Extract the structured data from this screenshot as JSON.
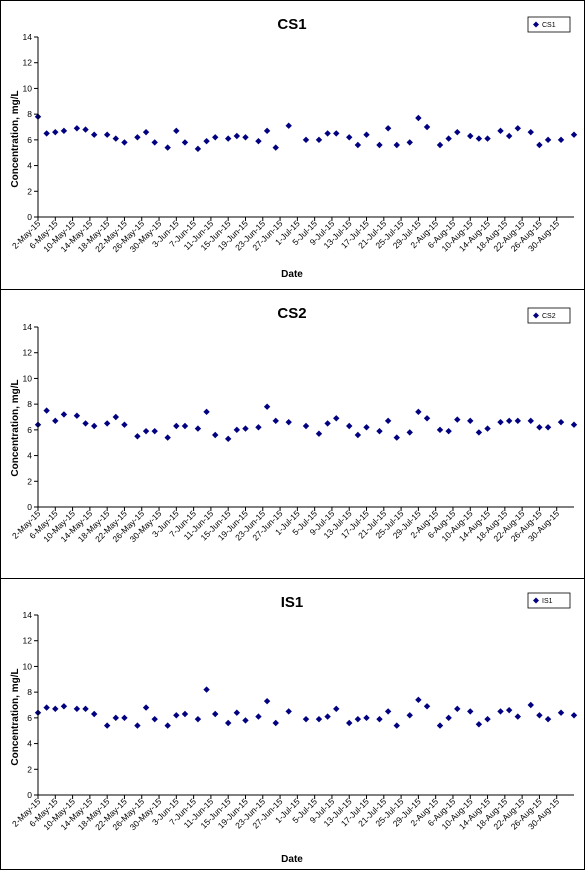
{
  "chart_data": [
    {
      "type": "scatter",
      "title": "CS1",
      "xlabel": "Date",
      "ylabel": "Concentration, mg/L",
      "ylim": [
        0,
        14
      ],
      "yticks": [
        "0",
        "2",
        "4",
        "6",
        "8",
        "10",
        "12",
        "14"
      ],
      "grid": false,
      "legend": "top-right",
      "x_tick_labels": [
        "2-May-15",
        "6-May-15",
        "10-May-15",
        "14-May-15",
        "18-May-15",
        "22-May-15",
        "26-May-15",
        "30-May-15",
        "3-Jun-15",
        "7-Jun-15",
        "11-Jun-15",
        "15-Jun-15",
        "19-Jun-15",
        "23-Jun-15",
        "27-Jun-15",
        "1-Jul-15",
        "5-Jul-15",
        "9-Jul-15",
        "13-Jul-15",
        "17-Jul-15",
        "21-Jul-15",
        "25-Jul-15",
        "29-Jul-15",
        "2-Aug-15",
        "6-Aug-15",
        "10-Aug-15",
        "14-Aug-15",
        "18-Aug-15",
        "22-Aug-15",
        "26-Aug-15",
        "30-Aug-15"
      ],
      "series": [
        {
          "name": "CS1",
          "color": "#000080",
          "points": [
            {
              "x": "2-May-15",
              "y": 7.8
            },
            {
              "x": "4-May-15",
              "y": 6.5
            },
            {
              "x": "6-May-15",
              "y": 6.6
            },
            {
              "x": "8-May-15",
              "y": 6.7
            },
            {
              "x": "11-May-15",
              "y": 6.9
            },
            {
              "x": "13-May-15",
              "y": 6.8
            },
            {
              "x": "15-May-15",
              "y": 6.4
            },
            {
              "x": "18-May-15",
              "y": 6.4
            },
            {
              "x": "20-May-15",
              "y": 6.1
            },
            {
              "x": "22-May-15",
              "y": 5.8
            },
            {
              "x": "25-May-15",
              "y": 6.2
            },
            {
              "x": "27-May-15",
              "y": 6.6
            },
            {
              "x": "29-May-15",
              "y": 5.8
            },
            {
              "x": "1-Jun-15",
              "y": 5.4
            },
            {
              "x": "3-Jun-15",
              "y": 6.7
            },
            {
              "x": "5-Jun-15",
              "y": 5.8
            },
            {
              "x": "8-Jun-15",
              "y": 5.3
            },
            {
              "x": "10-Jun-15",
              "y": 5.9
            },
            {
              "x": "12-Jun-15",
              "y": 6.2
            },
            {
              "x": "15-Jun-15",
              "y": 6.1
            },
            {
              "x": "17-Jun-15",
              "y": 6.3
            },
            {
              "x": "19-Jun-15",
              "y": 6.2
            },
            {
              "x": "22-Jun-15",
              "y": 5.9
            },
            {
              "x": "24-Jun-15",
              "y": 6.7
            },
            {
              "x": "26-Jun-15",
              "y": 5.4
            },
            {
              "x": "29-Jun-15",
              "y": 7.1
            },
            {
              "x": "3-Jul-15",
              "y": 6.0
            },
            {
              "x": "6-Jul-15",
              "y": 6.0
            },
            {
              "x": "8-Jul-15",
              "y": 6.5
            },
            {
              "x": "10-Jul-15",
              "y": 6.5
            },
            {
              "x": "13-Jul-15",
              "y": 6.2
            },
            {
              "x": "15-Jul-15",
              "y": 5.6
            },
            {
              "x": "17-Jul-15",
              "y": 6.4
            },
            {
              "x": "20-Jul-15",
              "y": 5.6
            },
            {
              "x": "22-Jul-15",
              "y": 6.9
            },
            {
              "x": "24-Jul-15",
              "y": 5.6
            },
            {
              "x": "27-Jul-15",
              "y": 5.8
            },
            {
              "x": "29-Jul-15",
              "y": 7.7
            },
            {
              "x": "31-Jul-15",
              "y": 7.0
            },
            {
              "x": "3-Aug-15",
              "y": 5.6
            },
            {
              "x": "5-Aug-15",
              "y": 6.1
            },
            {
              "x": "7-Aug-15",
              "y": 6.6
            },
            {
              "x": "10-Aug-15",
              "y": 6.3
            },
            {
              "x": "12-Aug-15",
              "y": 6.1
            },
            {
              "x": "14-Aug-15",
              "y": 6.1
            },
            {
              "x": "17-Aug-15",
              "y": 6.7
            },
            {
              "x": "19-Aug-15",
              "y": 6.3
            },
            {
              "x": "21-Aug-15",
              "y": 6.9
            },
            {
              "x": "24-Aug-15",
              "y": 6.6
            },
            {
              "x": "26-Aug-15",
              "y": 5.6
            },
            {
              "x": "28-Aug-15",
              "y": 6.0
            },
            {
              "x": "31-Aug-15",
              "y": 6.0
            },
            {
              "x": "3-Sep-15",
              "y": 6.4
            }
          ]
        }
      ]
    },
    {
      "type": "scatter",
      "title": "CS2",
      "xlabel": "Date",
      "ylabel": "Concentration, mg/L",
      "ylim": [
        0,
        14
      ],
      "yticks": [
        "0",
        "2",
        "4",
        "6",
        "8",
        "10",
        "12",
        "14"
      ],
      "grid": false,
      "legend": "top-right",
      "x_tick_labels": [
        "2-May-15",
        "6-May-15",
        "10-May-15",
        "14-May-15",
        "18-May-15",
        "22-May-15",
        "26-May-15",
        "30-May-15",
        "3-Jun-15",
        "7-Jun-15",
        "11-Jun-15",
        "15-Jun-15",
        "19-Jun-15",
        "23-Jun-15",
        "27-Jun-15",
        "1-Jul-15",
        "5-Jul-15",
        "9-Jul-15",
        "13-Jul-15",
        "17-Jul-15",
        "21-Jul-15",
        "25-Jul-15",
        "29-Jul-15",
        "2-Aug-15",
        "6-Aug-15",
        "10-Aug-15",
        "14-Aug-15",
        "18-Aug-15",
        "22-Aug-15",
        "26-Aug-15",
        "30-Aug-15"
      ],
      "series": [
        {
          "name": "CS2",
          "color": "#000080",
          "points": [
            {
              "x": "2-May-15",
              "y": 6.4
            },
            {
              "x": "4-May-15",
              "y": 7.5
            },
            {
              "x": "6-May-15",
              "y": 6.7
            },
            {
              "x": "8-May-15",
              "y": 7.2
            },
            {
              "x": "11-May-15",
              "y": 7.1
            },
            {
              "x": "13-May-15",
              "y": 6.5
            },
            {
              "x": "15-May-15",
              "y": 6.3
            },
            {
              "x": "18-May-15",
              "y": 6.5
            },
            {
              "x": "20-May-15",
              "y": 7.0
            },
            {
              "x": "22-May-15",
              "y": 6.4
            },
            {
              "x": "25-May-15",
              "y": 5.5
            },
            {
              "x": "27-May-15",
              "y": 5.9
            },
            {
              "x": "29-May-15",
              "y": 5.9
            },
            {
              "x": "1-Jun-15",
              "y": 5.4
            },
            {
              "x": "3-Jun-15",
              "y": 6.3
            },
            {
              "x": "5-Jun-15",
              "y": 6.3
            },
            {
              "x": "8-Jun-15",
              "y": 6.1
            },
            {
              "x": "10-Jun-15",
              "y": 7.4
            },
            {
              "x": "12-Jun-15",
              "y": 5.6
            },
            {
              "x": "15-Jun-15",
              "y": 5.3
            },
            {
              "x": "17-Jun-15",
              "y": 6.0
            },
            {
              "x": "19-Jun-15",
              "y": 6.1
            },
            {
              "x": "22-Jun-15",
              "y": 6.2
            },
            {
              "x": "24-Jun-15",
              "y": 7.8
            },
            {
              "x": "26-Jun-15",
              "y": 6.7
            },
            {
              "x": "29-Jun-15",
              "y": 6.6
            },
            {
              "x": "3-Jul-15",
              "y": 6.3
            },
            {
              "x": "6-Jul-15",
              "y": 5.7
            },
            {
              "x": "8-Jul-15",
              "y": 6.5
            },
            {
              "x": "10-Jul-15",
              "y": 6.9
            },
            {
              "x": "13-Jul-15",
              "y": 6.3
            },
            {
              "x": "15-Jul-15",
              "y": 5.6
            },
            {
              "x": "17-Jul-15",
              "y": 6.2
            },
            {
              "x": "20-Jul-15",
              "y": 5.9
            },
            {
              "x": "22-Jul-15",
              "y": 6.7
            },
            {
              "x": "24-Jul-15",
              "y": 5.4
            },
            {
              "x": "27-Jul-15",
              "y": 5.8
            },
            {
              "x": "29-Jul-15",
              "y": 7.4
            },
            {
              "x": "31-Jul-15",
              "y": 6.9
            },
            {
              "x": "3-Aug-15",
              "y": 6.0
            },
            {
              "x": "5-Aug-15",
              "y": 5.9
            },
            {
              "x": "7-Aug-15",
              "y": 6.8
            },
            {
              "x": "10-Aug-15",
              "y": 6.7
            },
            {
              "x": "12-Aug-15",
              "y": 5.8
            },
            {
              "x": "14-Aug-15",
              "y": 6.1
            },
            {
              "x": "17-Aug-15",
              "y": 6.6
            },
            {
              "x": "19-Aug-15",
              "y": 6.7
            },
            {
              "x": "21-Aug-15",
              "y": 6.7
            },
            {
              "x": "24-Aug-15",
              "y": 6.7
            },
            {
              "x": "26-Aug-15",
              "y": 6.2
            },
            {
              "x": "28-Aug-15",
              "y": 6.2
            },
            {
              "x": "31-Aug-15",
              "y": 6.6
            },
            {
              "x": "3-Sep-15",
              "y": 6.4
            }
          ]
        }
      ]
    },
    {
      "type": "scatter",
      "title": "IS1",
      "xlabel": "Date",
      "ylabel": "Concentration, mg/L",
      "ylim": [
        0,
        14
      ],
      "yticks": [
        "0",
        "2",
        "4",
        "6",
        "8",
        "10",
        "12",
        "14"
      ],
      "grid": false,
      "legend": "top-right",
      "x_tick_labels": [
        "2-May-15",
        "6-May-15",
        "10-May-15",
        "14-May-15",
        "18-May-15",
        "22-May-15",
        "26-May-15",
        "30-May-15",
        "3-Jun-15",
        "7-Jun-15",
        "11-Jun-15",
        "15-Jun-15",
        "19-Jun-15",
        "23-Jun-15",
        "27-Jun-15",
        "1-Jul-15",
        "5-Jul-15",
        "9-Jul-15",
        "13-Jul-15",
        "17-Jul-15",
        "21-Jul-15",
        "25-Jul-15",
        "29-Jul-15",
        "2-Aug-15",
        "6-Aug-15",
        "10-Aug-15",
        "14-Aug-15",
        "18-Aug-15",
        "22-Aug-15",
        "26-Aug-15",
        "30-Aug-15"
      ],
      "series": [
        {
          "name": "IS1",
          "color": "#000080",
          "points": [
            {
              "x": "2-May-15",
              "y": 6.4
            },
            {
              "x": "4-May-15",
              "y": 6.8
            },
            {
              "x": "6-May-15",
              "y": 6.7
            },
            {
              "x": "8-May-15",
              "y": 6.9
            },
            {
              "x": "11-May-15",
              "y": 6.7
            },
            {
              "x": "13-May-15",
              "y": 6.7
            },
            {
              "x": "15-May-15",
              "y": 6.3
            },
            {
              "x": "18-May-15",
              "y": 5.4
            },
            {
              "x": "20-May-15",
              "y": 6.0
            },
            {
              "x": "22-May-15",
              "y": 6.0
            },
            {
              "x": "25-May-15",
              "y": 5.4
            },
            {
              "x": "27-May-15",
              "y": 6.8
            },
            {
              "x": "29-May-15",
              "y": 5.9
            },
            {
              "x": "1-Jun-15",
              "y": 5.4
            },
            {
              "x": "3-Jun-15",
              "y": 6.2
            },
            {
              "x": "5-Jun-15",
              "y": 6.3
            },
            {
              "x": "8-Jun-15",
              "y": 5.9
            },
            {
              "x": "10-Jun-15",
              "y": 8.2
            },
            {
              "x": "12-Jun-15",
              "y": 6.3
            },
            {
              "x": "15-Jun-15",
              "y": 5.6
            },
            {
              "x": "17-Jun-15",
              "y": 6.4
            },
            {
              "x": "19-Jun-15",
              "y": 5.8
            },
            {
              "x": "22-Jun-15",
              "y": 6.1
            },
            {
              "x": "24-Jun-15",
              "y": 7.3
            },
            {
              "x": "26-Jun-15",
              "y": 5.6
            },
            {
              "x": "29-Jun-15",
              "y": 6.5
            },
            {
              "x": "3-Jul-15",
              "y": 5.9
            },
            {
              "x": "6-Jul-15",
              "y": 5.9
            },
            {
              "x": "8-Jul-15",
              "y": 6.1
            },
            {
              "x": "10-Jul-15",
              "y": 6.7
            },
            {
              "x": "13-Jul-15",
              "y": 5.6
            },
            {
              "x": "15-Jul-15",
              "y": 5.9
            },
            {
              "x": "17-Jul-15",
              "y": 6.0
            },
            {
              "x": "20-Jul-15",
              "y": 5.9
            },
            {
              "x": "22-Jul-15",
              "y": 6.5
            },
            {
              "x": "24-Jul-15",
              "y": 5.4
            },
            {
              "x": "27-Jul-15",
              "y": 6.2
            },
            {
              "x": "29-Jul-15",
              "y": 7.4
            },
            {
              "x": "31-Jul-15",
              "y": 6.9
            },
            {
              "x": "3-Aug-15",
              "y": 5.4
            },
            {
              "x": "5-Aug-15",
              "y": 6.0
            },
            {
              "x": "7-Aug-15",
              "y": 6.7
            },
            {
              "x": "10-Aug-15",
              "y": 6.5
            },
            {
              "x": "12-Aug-15",
              "y": 5.5
            },
            {
              "x": "14-Aug-15",
              "y": 5.9
            },
            {
              "x": "17-Aug-15",
              "y": 6.5
            },
            {
              "x": "19-Aug-15",
              "y": 6.6
            },
            {
              "x": "21-Aug-15",
              "y": 6.1
            },
            {
              "x": "24-Aug-15",
              "y": 7.0
            },
            {
              "x": "26-Aug-15",
              "y": 6.2
            },
            {
              "x": "28-Aug-15",
              "y": 5.9
            },
            {
              "x": "31-Aug-15",
              "y": 6.4
            },
            {
              "x": "3-Sep-15",
              "y": 6.2
            }
          ]
        }
      ]
    }
  ]
}
